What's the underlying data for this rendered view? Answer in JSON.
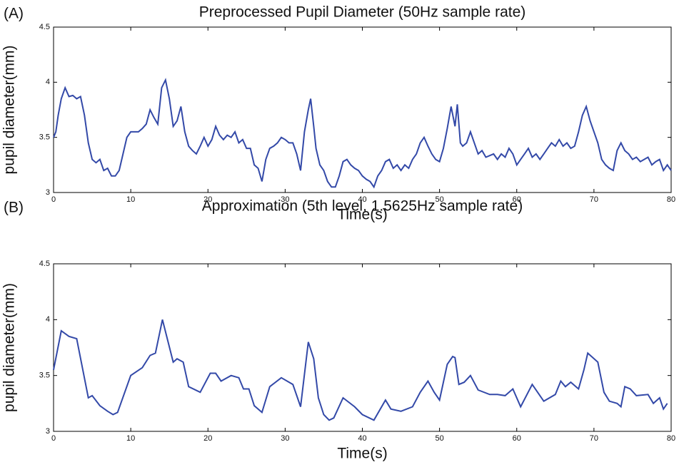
{
  "chart_data": [
    {
      "type": "line",
      "panel": "(A)",
      "title": "Preprocessed Pupil Diameter (50Hz sample rate)",
      "xlabel": "Time(s)",
      "ylabel": "pupil diameter(mm)",
      "color": "#3349a8",
      "xlim": [
        0,
        80
      ],
      "ylim": [
        3,
        4.5
      ],
      "xticks": [
        0,
        10,
        20,
        30,
        40,
        50,
        60,
        70,
        80
      ],
      "yticks": [
        3,
        3.5,
        4,
        4.5
      ],
      "grid": false,
      "x": [
        0,
        0.3,
        0.6,
        1,
        1.5,
        2,
        2.5,
        3,
        3.5,
        4,
        4.5,
        5,
        5.5,
        6,
        6.5,
        7,
        7.5,
        8,
        8.5,
        9,
        9.5,
        10,
        11,
        11.5,
        12,
        12.5,
        13,
        13.5,
        14,
        14.5,
        15,
        15.5,
        16,
        16.5,
        17,
        17.5,
        18,
        18.5,
        19,
        19.5,
        20,
        20.5,
        21,
        21.5,
        22,
        22.5,
        23,
        23.5,
        24,
        24.5,
        25,
        25.5,
        26,
        26.5,
        27,
        27.5,
        28,
        28.5,
        29,
        29.5,
        30,
        30.5,
        31,
        31.5,
        32,
        32.5,
        33,
        33.3,
        33.7,
        34,
        34.5,
        35,
        35.5,
        36,
        36.5,
        37,
        37.5,
        38,
        38.5,
        39,
        39.5,
        40,
        40.5,
        41,
        41.5,
        42,
        42.5,
        43,
        43.5,
        44,
        44.5,
        45,
        45.5,
        46,
        46.5,
        47,
        47.5,
        48,
        48.5,
        49,
        49.5,
        50,
        50.5,
        51,
        51.5,
        52,
        52.3,
        52.7,
        53,
        53.5,
        54,
        54.5,
        55,
        55.5,
        56,
        57,
        57.5,
        58,
        58.5,
        59,
        59.5,
        60,
        60.5,
        61,
        61.5,
        62,
        62.5,
        63,
        63.5,
        64,
        64.5,
        65,
        65.5,
        66,
        66.5,
        67,
        67.5,
        68,
        68.5,
        69,
        69.5,
        70,
        70.5,
        71,
        71.5,
        72,
        72.5,
        73,
        73.5,
        74,
        74.5,
        75,
        75.5,
        76,
        76.5,
        77,
        77.5,
        78,
        78.5,
        79,
        79.5,
        80
      ],
      "values": [
        3.5,
        3.55,
        3.7,
        3.85,
        3.95,
        3.87,
        3.88,
        3.85,
        3.87,
        3.7,
        3.45,
        3.3,
        3.27,
        3.3,
        3.2,
        3.22,
        3.15,
        3.15,
        3.2,
        3.35,
        3.5,
        3.55,
        3.55,
        3.58,
        3.62,
        3.75,
        3.68,
        3.62,
        3.95,
        4.02,
        3.85,
        3.6,
        3.65,
        3.78,
        3.55,
        3.42,
        3.38,
        3.35,
        3.42,
        3.5,
        3.42,
        3.48,
        3.6,
        3.52,
        3.48,
        3.52,
        3.5,
        3.55,
        3.45,
        3.48,
        3.4,
        3.4,
        3.25,
        3.22,
        3.1,
        3.3,
        3.4,
        3.42,
        3.45,
        3.5,
        3.48,
        3.45,
        3.45,
        3.35,
        3.2,
        3.55,
        3.75,
        3.85,
        3.6,
        3.4,
        3.25,
        3.2,
        3.1,
        3.05,
        3.05,
        3.15,
        3.28,
        3.3,
        3.25,
        3.22,
        3.2,
        3.15,
        3.12,
        3.1,
        3.05,
        3.15,
        3.2,
        3.28,
        3.3,
        3.22,
        3.25,
        3.2,
        3.25,
        3.22,
        3.3,
        3.35,
        3.45,
        3.5,
        3.42,
        3.35,
        3.3,
        3.28,
        3.4,
        3.58,
        3.78,
        3.6,
        3.8,
        3.45,
        3.42,
        3.45,
        3.55,
        3.45,
        3.35,
        3.38,
        3.32,
        3.35,
        3.3,
        3.35,
        3.32,
        3.4,
        3.35,
        3.25,
        3.3,
        3.35,
        3.4,
        3.32,
        3.35,
        3.3,
        3.35,
        3.4,
        3.45,
        3.42,
        3.48,
        3.42,
        3.45,
        3.4,
        3.42,
        3.55,
        3.7,
        3.78,
        3.65,
        3.55,
        3.45,
        3.3,
        3.25,
        3.22,
        3.2,
        3.38,
        3.45,
        3.38,
        3.35,
        3.3,
        3.32,
        3.28,
        3.3,
        3.32,
        3.25,
        3.28,
        3.3,
        3.2,
        3.25,
        3.2
      ]
    },
    {
      "type": "line",
      "panel": "(B)",
      "title": "Approximation (5th level, 1.5625Hz sample rate)",
      "xlabel": "Time(s)",
      "ylabel": "pupil diameter(mm)",
      "color": "#3349a8",
      "xlim": [
        0,
        80
      ],
      "ylim": [
        3,
        4.5
      ],
      "xticks": [
        0,
        10,
        20,
        30,
        40,
        50,
        60,
        70,
        80
      ],
      "yticks": [
        3,
        3.5,
        4,
        4.5
      ],
      "grid": false,
      "x": [
        0,
        1,
        2,
        3,
        4.5,
        5,
        6,
        7,
        7.7,
        8.3,
        10,
        11.5,
        12.5,
        13.2,
        14.1,
        15.5,
        16,
        16.8,
        17.5,
        19,
        20.3,
        21,
        21.7,
        23,
        24,
        24.6,
        25.3,
        26,
        27,
        28,
        29.5,
        31,
        32,
        33,
        33.7,
        34.3,
        35,
        35.7,
        36.3,
        37.5,
        39,
        40,
        41.5,
        43,
        43.7,
        45,
        46.5,
        47.5,
        48.5,
        49.3,
        50,
        51,
        51.7,
        52,
        52.5,
        53.2,
        54,
        55,
        56.5,
        57.5,
        58.5,
        59.5,
        60.5,
        62,
        63.5,
        65,
        65.7,
        66.3,
        67,
        68,
        68.7,
        69.2,
        70.5,
        71.3,
        72,
        73,
        73.5,
        74,
        74.7,
        75.5,
        77,
        77.7,
        78.5,
        79,
        79.5
      ],
      "values": [
        3.55,
        3.9,
        3.85,
        3.83,
        3.3,
        3.32,
        3.23,
        3.18,
        3.15,
        3.17,
        3.5,
        3.57,
        3.68,
        3.7,
        4.0,
        3.62,
        3.65,
        3.62,
        3.4,
        3.35,
        3.52,
        3.52,
        3.45,
        3.5,
        3.48,
        3.38,
        3.38,
        3.23,
        3.17,
        3.4,
        3.48,
        3.42,
        3.22,
        3.8,
        3.65,
        3.3,
        3.15,
        3.1,
        3.12,
        3.3,
        3.22,
        3.15,
        3.1,
        3.28,
        3.2,
        3.18,
        3.22,
        3.35,
        3.45,
        3.35,
        3.28,
        3.6,
        3.67,
        3.66,
        3.42,
        3.44,
        3.5,
        3.37,
        3.33,
        3.33,
        3.32,
        3.38,
        3.22,
        3.42,
        3.27,
        3.33,
        3.45,
        3.4,
        3.44,
        3.38,
        3.55,
        3.7,
        3.62,
        3.35,
        3.27,
        3.25,
        3.22,
        3.4,
        3.38,
        3.32,
        3.33,
        3.25,
        3.3,
        3.2,
        3.25
      ]
    }
  ]
}
